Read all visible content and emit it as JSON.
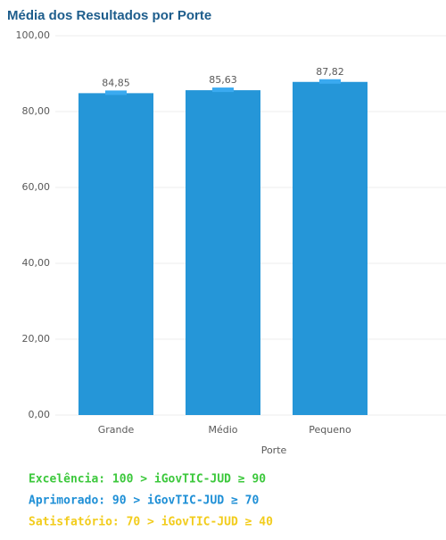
{
  "chart_data": {
    "type": "bar",
    "title": "Média dos Resultados por Porte",
    "categories": [
      "Grande",
      "Médio",
      "Pequeno"
    ],
    "values": [
      84.85,
      85.63,
      87.82
    ],
    "value_labels": [
      "84,85",
      "85,63",
      "87,82"
    ],
    "color": "#2596d8",
    "x_label": "Porte",
    "ylim": [
      0,
      100
    ],
    "yticks": [
      {
        "value": 0,
        "label": "0,00"
      },
      {
        "value": 20,
        "label": "20,00"
      },
      {
        "value": 40,
        "label": "40,00"
      },
      {
        "value": 60,
        "label": "60,00"
      },
      {
        "value": 80,
        "label": "80,00"
      },
      {
        "value": 100,
        "label": "100,00"
      }
    ],
    "grid": true,
    "annotations": [
      {
        "text": "Excelência: 100 > iGovTIC-JUD ≥ 90",
        "color": "#3cc83c"
      },
      {
        "text": "Aprimorado: 90 > iGovTIC-JUD ≥ 70",
        "color": "#1e8fd6"
      },
      {
        "text": "Satisfatório: 70 > iGovTIC-JUD ≥ 40",
        "color": "#f2cc1c"
      }
    ]
  }
}
